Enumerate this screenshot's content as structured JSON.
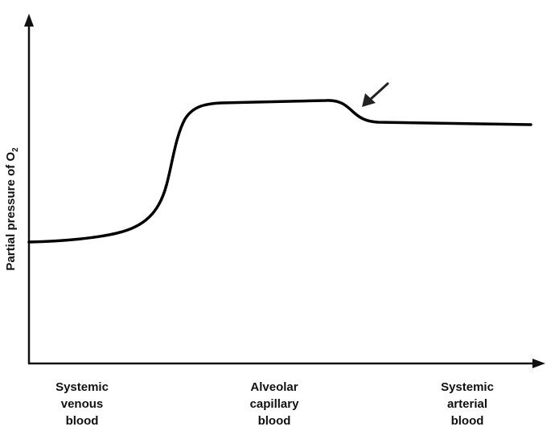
{
  "axes": {
    "ylabel": {
      "text": "Partial pressure of O",
      "subscript": "2"
    }
  },
  "categories": [
    {
      "lines": [
        "Systemic",
        "venous",
        "blood"
      ]
    },
    {
      "lines": [
        "Alveolar",
        "capillary",
        "blood"
      ]
    },
    {
      "lines": [
        "Systemic",
        "arterial",
        "blood"
      ]
    }
  ],
  "curve": {
    "description_points": "relative O2 level along circulation",
    "color": "#000000"
  },
  "arrow": {
    "icon": "arrow-down-left-icon",
    "color": "#222222"
  }
}
